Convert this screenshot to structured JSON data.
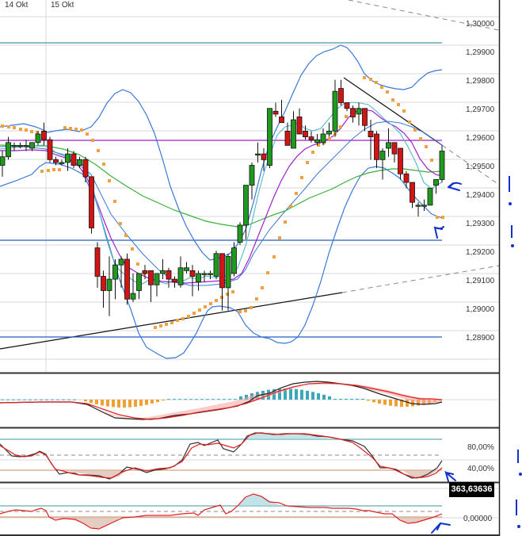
{
  "chart_data": [
    {
      "panel": "price",
      "type": "candlestick",
      "title": "",
      "x_date_labels": [
        "14 Okt",
        "15 Okt"
      ],
      "ylabel": "",
      "ylim": [
        1.2885,
        1.3012
      ],
      "y_ticks": [
        "1,30000",
        "1,29900",
        "1,29800",
        "1,29700",
        "1,29600",
        "1,29500",
        "1,29400",
        "1,29300",
        "1,29200",
        "1,29100",
        "1,29000",
        "1,28900"
      ],
      "grid": true,
      "overlays": [
        "Bollinger Bands (blue)",
        "EMA fast (light blue)",
        "EMA mid (purple)",
        "SMA slow (green)",
        "Parabolic SAR (orange dots)",
        "Support trendline (black)",
        "Resistance trendline (black/dashed)"
      ],
      "horizontal_levels": [
        {
          "value": 1.29927,
          "color": "#3a9aa0"
        },
        {
          "value": 1.29578,
          "color": "#a020c0"
        },
        {
          "value": 1.29226,
          "color": "#1f5fbf"
        },
        {
          "value": 1.28893,
          "color": "#1f5fbf"
        }
      ],
      "candles_approx": [
        {
          "o": 1.295,
          "h": 1.2955,
          "l": 1.2946,
          "c": 1.2953
        },
        {
          "o": 1.2953,
          "h": 1.296,
          "l": 1.2952,
          "c": 1.2958
        },
        {
          "o": 1.2957,
          "h": 1.2958,
          "l": 1.2955,
          "c": 1.2957
        },
        {
          "o": 1.2957,
          "h": 1.2958,
          "l": 1.2956,
          "c": 1.2957
        },
        {
          "o": 1.2957,
          "h": 1.2959,
          "l": 1.2955,
          "c": 1.2957
        },
        {
          "o": 1.2956,
          "h": 1.2958,
          "l": 1.2955,
          "c": 1.2958
        },
        {
          "o": 1.2958,
          "h": 1.2962,
          "l": 1.2957,
          "c": 1.2961
        },
        {
          "o": 1.2962,
          "h": 1.2965,
          "l": 1.2957,
          "c": 1.2959
        },
        {
          "o": 1.2959,
          "h": 1.296,
          "l": 1.2951,
          "c": 1.2952
        },
        {
          "o": 1.2952,
          "h": 1.2953,
          "l": 1.295,
          "c": 1.2951
        },
        {
          "o": 1.2951,
          "h": 1.2952,
          "l": 1.295,
          "c": 1.2951
        },
        {
          "o": 1.2951,
          "h": 1.2956,
          "l": 1.2948,
          "c": 1.2954
        },
        {
          "o": 1.2954,
          "h": 1.2955,
          "l": 1.2949,
          "c": 1.295
        },
        {
          "o": 1.295,
          "h": 1.2953,
          "l": 1.2949,
          "c": 1.2952
        },
        {
          "o": 1.2952,
          "h": 1.2953,
          "l": 1.2944,
          "c": 1.2946
        },
        {
          "o": 1.2946,
          "h": 1.2937,
          "l": 1.2926,
          "c": 1.2928
        },
        {
          "o": 1.2921,
          "h": 1.2923,
          "l": 1.2907,
          "c": 1.2911
        },
        {
          "o": 1.2911,
          "h": 1.2913,
          "l": 1.29,
          "c": 1.2906
        },
        {
          "o": 1.2906,
          "h": 1.2918,
          "l": 1.2897,
          "c": 1.291
        },
        {
          "o": 1.291,
          "h": 1.2917,
          "l": 1.2903,
          "c": 1.2915
        },
        {
          "o": 1.2915,
          "h": 1.2918,
          "l": 1.2907,
          "c": 1.2917
        },
        {
          "o": 1.2917,
          "h": 1.2919,
          "l": 1.2901,
          "c": 1.2903
        },
        {
          "o": 1.2903,
          "h": 1.2912,
          "l": 1.2902,
          "c": 1.2905
        },
        {
          "o": 1.2906,
          "h": 1.2912,
          "l": 1.2903,
          "c": 1.2912
        },
        {
          "o": 1.2913,
          "h": 1.2915,
          "l": 1.291,
          "c": 1.2912
        },
        {
          "o": 1.2913,
          "h": 1.2913,
          "l": 1.2902,
          "c": 1.2908
        },
        {
          "o": 1.2908,
          "h": 1.2912,
          "l": 1.2904,
          "c": 1.2912
        },
        {
          "o": 1.2912,
          "h": 1.2917,
          "l": 1.291,
          "c": 1.2913
        },
        {
          "o": 1.2913,
          "h": 1.2914,
          "l": 1.2907,
          "c": 1.291
        },
        {
          "o": 1.291,
          "h": 1.2911,
          "l": 1.2907,
          "c": 1.2909
        },
        {
          "o": 1.2908,
          "h": 1.2918,
          "l": 1.2907,
          "c": 1.2914
        },
        {
          "o": 1.2913,
          "h": 1.2916,
          "l": 1.2912,
          "c": 1.2914
        },
        {
          "o": 1.2913,
          "h": 1.2915,
          "l": 1.2904,
          "c": 1.2911
        },
        {
          "o": 1.2909,
          "h": 1.2913,
          "l": 1.2906,
          "c": 1.2912
        },
        {
          "o": 1.2912,
          "h": 1.2913,
          "l": 1.2909,
          "c": 1.2912
        },
        {
          "o": 1.2912,
          "h": 1.2913,
          "l": 1.291,
          "c": 1.2912
        },
        {
          "o": 1.2911,
          "h": 1.292,
          "l": 1.291,
          "c": 1.2919
        },
        {
          "o": 1.2919,
          "h": 1.2919,
          "l": 1.2899,
          "c": 1.2907
        },
        {
          "o": 1.2907,
          "h": 1.2919,
          "l": 1.2899,
          "c": 1.2918
        },
        {
          "o": 1.2912,
          "h": 1.2923,
          "l": 1.2911,
          "c": 1.2921
        },
        {
          "o": 1.2923,
          "h": 1.293,
          "l": 1.2922,
          "c": 1.2929
        },
        {
          "o": 1.2929,
          "h": 1.2943,
          "l": 1.2924,
          "c": 1.2943
        },
        {
          "o": 1.2943,
          "h": 1.2951,
          "l": 1.2938,
          "c": 1.295
        },
        {
          "o": 1.2954,
          "h": 1.2958,
          "l": 1.2951,
          "c": 1.2954
        },
        {
          "o": 1.2954,
          "h": 1.2956,
          "l": 1.2948,
          "c": 1.2952
        },
        {
          "o": 1.295,
          "h": 1.2967,
          "l": 1.2949,
          "c": 1.297
        },
        {
          "o": 1.2969,
          "h": 1.2972,
          "l": 1.2967,
          "c": 1.2968
        },
        {
          "o": 1.2967,
          "h": 1.2973,
          "l": 1.2965,
          "c": 1.2965
        },
        {
          "o": 1.2962,
          "h": 1.2965,
          "l": 1.2957,
          "c": 1.2957
        },
        {
          "o": 1.2956,
          "h": 1.2969,
          "l": 1.2956,
          "c": 1.2966
        },
        {
          "o": 1.2967,
          "h": 1.297,
          "l": 1.2961,
          "c": 1.2961
        },
        {
          "o": 1.2962,
          "h": 1.2964,
          "l": 1.2959,
          "c": 1.296
        },
        {
          "o": 1.296,
          "h": 1.2962,
          "l": 1.2958,
          "c": 1.2959
        },
        {
          "o": 1.2958,
          "h": 1.2961,
          "l": 1.2957,
          "c": 1.2959
        },
        {
          "o": 1.2958,
          "h": 1.2963,
          "l": 1.2957,
          "c": 1.2961
        },
        {
          "o": 1.2961,
          "h": 1.2965,
          "l": 1.296,
          "c": 1.2962
        },
        {
          "o": 1.2962,
          "h": 1.298,
          "l": 1.296,
          "c": 1.2976
        },
        {
          "o": 1.2977,
          "h": 1.298,
          "l": 1.2971,
          "c": 1.2972
        },
        {
          "o": 1.2972,
          "h": 1.2972,
          "l": 1.2969,
          "c": 1.297
        },
        {
          "o": 1.297,
          "h": 1.2971,
          "l": 1.2965,
          "c": 1.2967
        },
        {
          "o": 1.2968,
          "h": 1.2972,
          "l": 1.2964,
          "c": 1.297
        },
        {
          "o": 1.297,
          "h": 1.297,
          "l": 1.2962,
          "c": 1.2964
        },
        {
          "o": 1.2962,
          "h": 1.2966,
          "l": 1.2952,
          "c": 1.296
        },
        {
          "o": 1.2961,
          "h": 1.2962,
          "l": 1.2949,
          "c": 1.2952
        },
        {
          "o": 1.2952,
          "h": 1.2956,
          "l": 1.2945,
          "c": 1.2955
        },
        {
          "o": 1.2956,
          "h": 1.2963,
          "l": 1.2953,
          "c": 1.2958
        },
        {
          "o": 1.2958,
          "h": 1.2958,
          "l": 1.2951,
          "c": 1.2954
        },
        {
          "o": 1.2956,
          "h": 1.2956,
          "l": 1.2945,
          "c": 1.2947
        },
        {
          "o": 1.2947,
          "h": 1.2948,
          "l": 1.2942,
          "c": 1.2944
        },
        {
          "o": 1.2944,
          "h": 1.2944,
          "l": 1.2935,
          "c": 1.2937
        },
        {
          "o": 1.2936,
          "h": 1.2937,
          "l": 1.2932,
          "c": 1.2936
        },
        {
          "o": 1.2936,
          "h": 1.2938,
          "l": 1.2934,
          "c": 1.2936
        },
        {
          "o": 1.2936,
          "h": 1.2942,
          "l": 1.2936,
          "c": 1.2942
        },
        {
          "o": 1.2943,
          "h": 1.2945,
          "l": 1.294,
          "c": 1.2945
        },
        {
          "o": 1.2945,
          "h": 1.2957,
          "l": 1.2944,
          "c": 1.2955
        }
      ]
    },
    {
      "panel": "macd",
      "type": "line+bar",
      "series": [
        "MACD line (black)",
        "Signal line (red)",
        "Histogram (orange negative, teal positive)"
      ],
      "shape": "flat near zero, dips negative (~x 100-240), rises to positive peak (~x 350-480), turns negative at right end"
    },
    {
      "panel": "stochastic",
      "type": "line",
      "y_ticks": [
        "80,00%",
        "40,00%"
      ],
      "levels": [
        {
          "value": 80,
          "color": "#3a9aa0"
        },
        {
          "value": 60,
          "style": "dashed"
        },
        {
          "value": 20,
          "color": "#d08a60"
        }
      ],
      "last_visible": "rising from oversold near bottom"
    },
    {
      "panel": "cci",
      "type": "line",
      "y_ticks": [
        "0,00000"
      ],
      "current_value_label": "363,63636",
      "levels": [
        {
          "value": 100,
          "color": "#3a9aa0"
        },
        {
          "value": 0,
          "style": "dashed"
        },
        {
          "value": -100,
          "color": "#d08a60"
        }
      ]
    }
  ],
  "header": {
    "dates": [
      {
        "label": "14 Okt"
      },
      {
        "label": "15 Okt"
      }
    ]
  },
  "price_axis": {
    "ticks": [
      "1,30000",
      "1,29900",
      "1,29800",
      "1,29700",
      "1,29600",
      "1,29500",
      "1,29400",
      "1,29300",
      "1,29200",
      "1,29100",
      "1,29000",
      "1,28900"
    ]
  },
  "stoch_axis": {
    "ticks": [
      "80,00%",
      "40,00%"
    ]
  },
  "cci_axis": {
    "ticks": [
      "0,00000"
    ],
    "value_tag": "363,63636"
  },
  "colors": {
    "bull": "#1f9a1f",
    "bear": "#d41414",
    "bollinger": "#3a78d6",
    "ema_fast": "#55b8c8",
    "ema_mid": "#a020d0",
    "sma_slow": "#3ab03a",
    "sar": "#f0a040",
    "level_teal": "#3a9aa0",
    "level_blue": "#1f5fbf",
    "level_purple": "#a020c0",
    "annotation": "#1030d0"
  }
}
